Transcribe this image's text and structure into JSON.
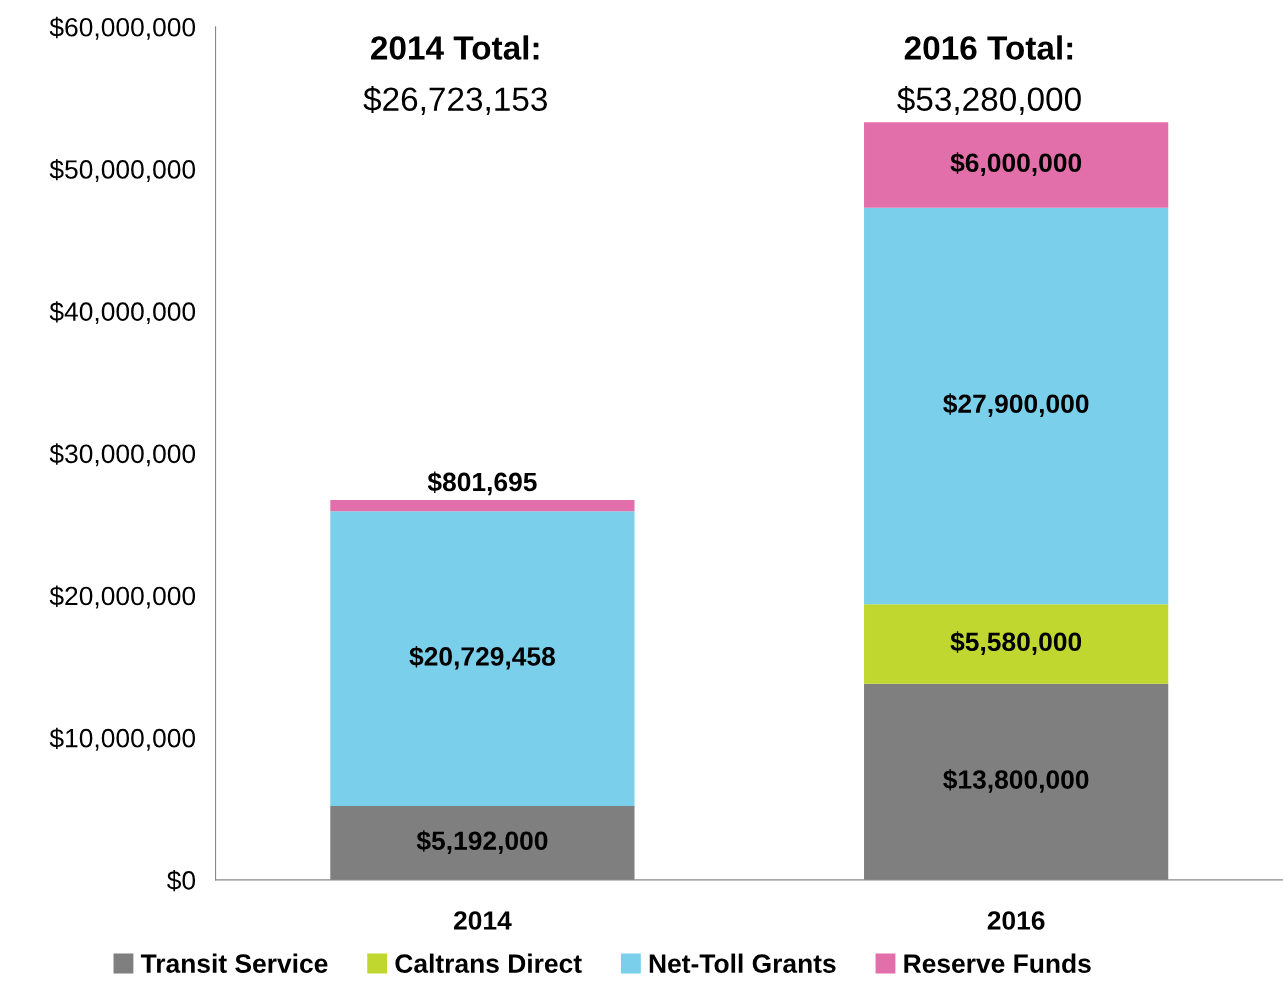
{
  "chart_data": {
    "type": "bar",
    "stacked": true,
    "categories": [
      "2014",
      "2016"
    ],
    "series": [
      {
        "name": "Transit Service",
        "color": "#7f7f7f",
        "values": [
          5192000,
          13800000
        ],
        "value_labels": [
          "$5,192,000",
          "$13,800,000"
        ]
      },
      {
        "name": "Caltrans Direct",
        "color": "#c0d72f",
        "values": [
          0,
          5580000
        ],
        "value_labels": [
          null,
          "$5,580,000"
        ]
      },
      {
        "name": "Net-Toll Grants",
        "color": "#7ad0eb",
        "values": [
          20729458,
          27900000
        ],
        "value_labels": [
          "$20,729,458",
          "$27,900,000"
        ]
      },
      {
        "name": "Reserve Funds",
        "color": "#e36faa",
        "values": [
          801695,
          6000000
        ],
        "value_labels": [
          "$801,695",
          "$6,000,000"
        ]
      }
    ],
    "annotations": [
      "2014 Total:",
      "$26,723,153",
      "2016 Total:",
      "$53,280,000"
    ],
    "ylim": [
      0,
      60000000
    ],
    "yticks": [
      {
        "value": 0,
        "label": "$0"
      },
      {
        "value": 10000000,
        "label": "$10,000,000"
      },
      {
        "value": 20000000,
        "label": "$20,000,000"
      },
      {
        "value": 30000000,
        "label": "$30,000,000"
      },
      {
        "value": 40000000,
        "label": "$40,000,000"
      },
      {
        "value": 50000000,
        "label": "$50,000,000"
      },
      {
        "value": 60000000,
        "label": "$60,000,000"
      }
    ],
    "grid": false,
    "legend": "bottom"
  }
}
